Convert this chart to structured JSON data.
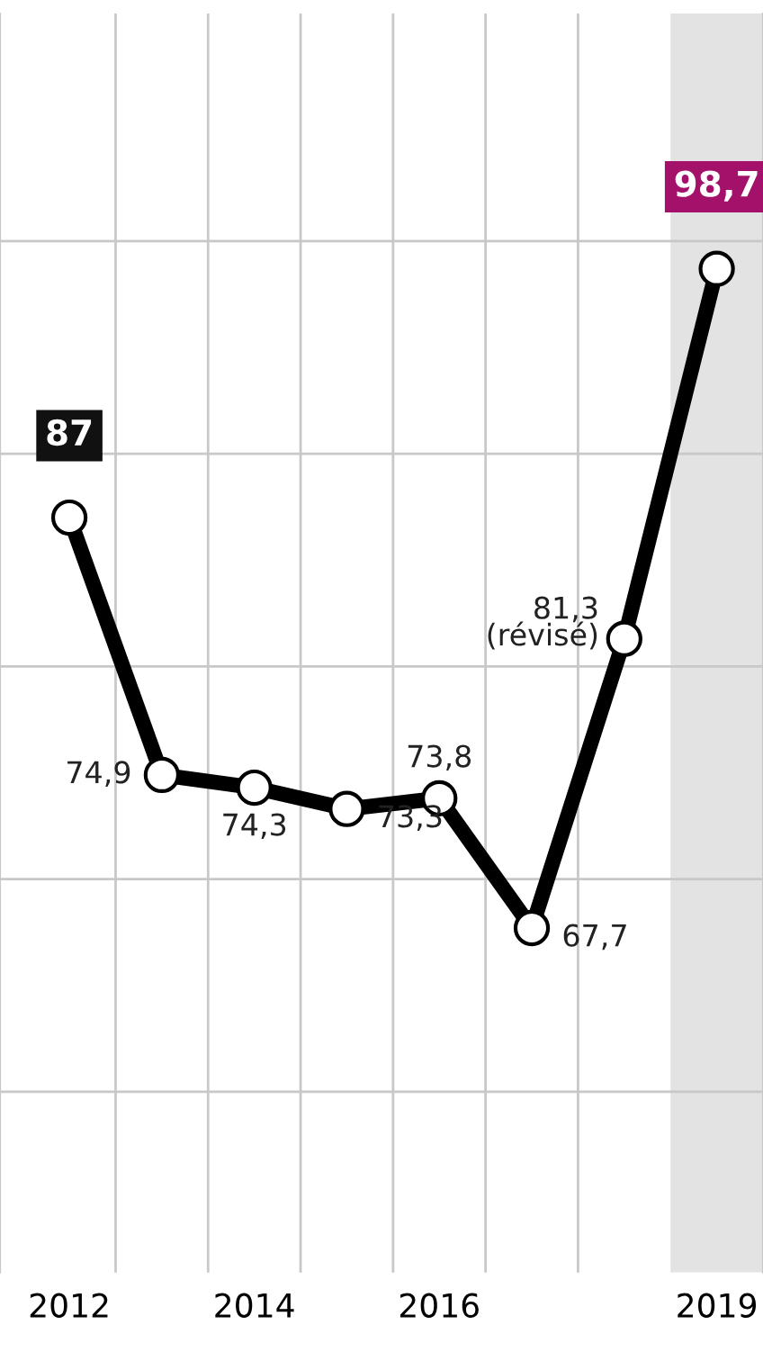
{
  "chart_data": {
    "type": "line",
    "x": [
      2012,
      2013,
      2014,
      2015,
      2016,
      2017,
      2018,
      2019
    ],
    "series": [
      {
        "color": "#000000",
        "values": [
          87,
          74.9,
          74.3,
          73.3,
          73.8,
          67.7,
          81.3,
          98.7
        ],
        "value_labels": [
          "87",
          "74,9",
          "74,3",
          "73,3",
          "73,8",
          "67,7",
          "81,3\n(révisé)",
          "98,7"
        ]
      }
    ],
    "marker": "circle",
    "line_style": "solid",
    "xlim": [
      2011.25,
      2019.5
    ],
    "xticks": [
      2012,
      2014,
      2016,
      2019
    ],
    "ylim": [
      51.5,
      110.7
    ],
    "yticks": [
      {
        "value": 60,
        "label": null
      },
      {
        "value": 70,
        "label": null
      },
      {
        "value": 80,
        "label": null
      },
      {
        "value": 90,
        "label": null
      },
      {
        "value": 100,
        "label": null
      }
    ],
    "grid": "y",
    "tick_labels": "x",
    "ref_lines": [
      {
        "axis": "x",
        "value": 2012.5,
        "color": "#c8c8c8"
      },
      {
        "axis": "x",
        "value": 2013.5,
        "color": "#c8c8c8"
      },
      {
        "axis": "x",
        "value": 2014.5,
        "color": "#c8c8c8"
      },
      {
        "axis": "x",
        "value": 2015.5,
        "color": "#c8c8c8"
      },
      {
        "axis": "x",
        "value": 2016.5,
        "color": "#c8c8c8"
      },
      {
        "axis": "x",
        "value": 2017.5,
        "color": "#c8c8c8"
      }
    ],
    "bands": [
      {
        "axis": "x",
        "from": 2018.5,
        "to": 2019.5,
        "color": "#e3e3e3"
      }
    ]
  }
}
